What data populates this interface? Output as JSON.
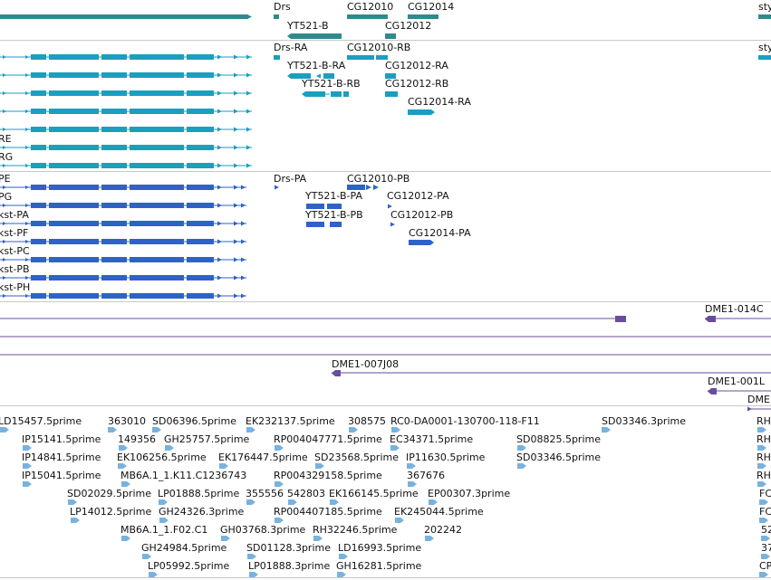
{
  "colors": {
    "gene": "#2e8b8c",
    "transcript_rna": "#1a9fbf",
    "transcript_protein": "#2f62c9",
    "clone": "#6a4c9c",
    "est": "#78b2de",
    "separator": "#c8c8c8"
  },
  "gene_track": {
    "labels": [
      "Drs",
      "CG12010",
      "CG12014",
      "YT521-B",
      "CG12012",
      "sty"
    ]
  },
  "rna_track": {
    "labels": [
      "Drs-RA",
      "CG12010-RB",
      "YT521-B-RA",
      "CG12012-RA",
      "YT521-B-RB",
      "CG12012-RB",
      "CG12014-RA",
      "sty"
    ],
    "left_edge_labels": [
      "RE",
      "RG"
    ]
  },
  "protein_track": {
    "labels": [
      "Drs-PA",
      "CG12010-PB",
      "YT521-B-PA",
      "CG12012-PA",
      "YT521-B-PB",
      "CG12012-PB",
      "CG12014-PA"
    ],
    "left_edge_labels": [
      "PE",
      "PG",
      "kst-PA",
      "kst-PF",
      "kst-PC",
      "kst-PB",
      "kst-PH"
    ]
  },
  "clone_track": {
    "labels": [
      "DME1-014C",
      "DME1-007J08",
      "DME1-001L",
      "DME"
    ]
  },
  "est_track": {
    "labels": [
      "LD15457.5prime",
      "363010",
      "SD06396.5prime",
      "EK232137.5prime",
      "308575",
      "RC0-DA0001-130700-118-F11",
      "SD03346.3prime",
      "RH",
      "IP15141.5prime",
      "149356",
      "GH25757.5prime",
      "RP004047771.5prime",
      "EC34371.5prime",
      "SD08825.5prime",
      "RH",
      "IP14841.5prime",
      "EK106256.5prime",
      "EK176447.5prime",
      "SD23568.5prime",
      "IP11630.5prime",
      "SD03346.5prime",
      "RH",
      "IP15041.5prime",
      "MB6A.1_1.K11.C1236743",
      "RP004329158.5prime",
      "367676",
      "RH",
      "SD02029.5prime",
      "LP01888.5prime",
      "355556",
      "542803",
      "EK166145.5prime",
      "EP00307.3prime",
      "FC",
      "LP14012.5prime",
      "GH24326.3prime",
      "RP004407185.5prime",
      "EK245044.5prime",
      "FC",
      "MB6A.1_1.F02.C1",
      "GH03768.3prime",
      "RH32246.5prime",
      "202242",
      "52",
      "GH24984.5prime",
      "SD01128.3prime",
      "LD16993.5prime",
      "37",
      "LP05992.5prime",
      "LP01888.3prime",
      "GH16281.5prime",
      "CP"
    ]
  }
}
